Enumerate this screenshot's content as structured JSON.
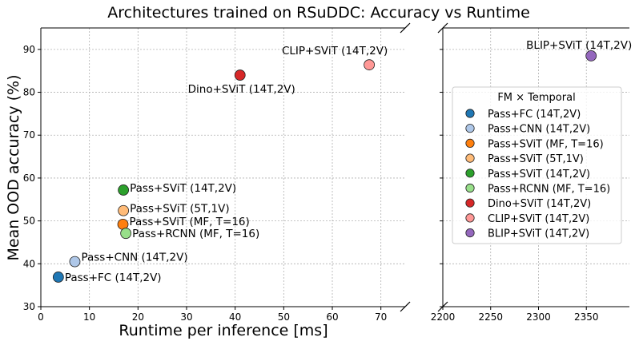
{
  "chart_data": {
    "type": "scatter",
    "title": "Architectures trained on RSuDDC: Accuracy vs Runtime",
    "xlabel": "Runtime per inference [ms]",
    "ylabel": "Mean OOD accuracy (%)",
    "broken_x_axis": true,
    "xlim_left": [
      0,
      75
    ],
    "xlim_right": [
      2200,
      2395
    ],
    "ylim": [
      30,
      95
    ],
    "xticks_left": [
      "0",
      "10",
      "20",
      "30",
      "40",
      "50",
      "60",
      "70"
    ],
    "xticks_right": [
      "2200",
      "2250",
      "2300",
      "2350"
    ],
    "yticks": [
      "30",
      "40",
      "50",
      "60",
      "70",
      "80",
      "90"
    ],
    "grid": true,
    "legend": {
      "title": "FM × Temporal",
      "placement": "center-right"
    },
    "series": [
      {
        "name": "Pass+FC (14T,2V)",
        "label": "Pass+FC (14T,2V)",
        "color": "#1f77b4",
        "x": 3.6,
        "y": 36.9
      },
      {
        "name": "Pass+CNN (14T,2V)",
        "label": "Pass+CNN (14T,2V)",
        "color": "#aec7e8",
        "x": 7.0,
        "y": 40.5
      },
      {
        "name": "Pass+SViT (MF, T=16)",
        "label": "Pass+SViT (MF, T=16)",
        "color": "#ff7f0e",
        "x": 16.9,
        "y": 49.2
      },
      {
        "name": "Pass+SViT (5T,1V)",
        "label": "Pass+SViT (5T,1V)",
        "color": "#ffbb78",
        "x": 17.0,
        "y": 52.4
      },
      {
        "name": "Pass+SViT (14T,2V)",
        "label": "Pass+SViT (14T,2V)",
        "color": "#2ca02c",
        "x": 17.0,
        "y": 57.2
      },
      {
        "name": "Pass+RCNN (MF, T=16)",
        "label": "Pass+RCNN (MF, T=16)",
        "color": "#98df8a",
        "x": 17.5,
        "y": 47.1
      },
      {
        "name": "Dino+SViT (14T,2V)",
        "label": "Dino+SViT (14T,2V)",
        "color": "#d62728",
        "x": 41.0,
        "y": 84.0
      },
      {
        "name": "CLIP+SViT (14T,2V)",
        "label": "CLIP+SViT (14T,2V)",
        "color": "#ff9896",
        "x": 67.6,
        "y": 86.4
      },
      {
        "name": "BLIP+SViT (14T,2V)",
        "label": "BLIP+SViT (14T,2V)",
        "color": "#9467bd",
        "x": 2355,
        "y": 88.5
      }
    ]
  }
}
